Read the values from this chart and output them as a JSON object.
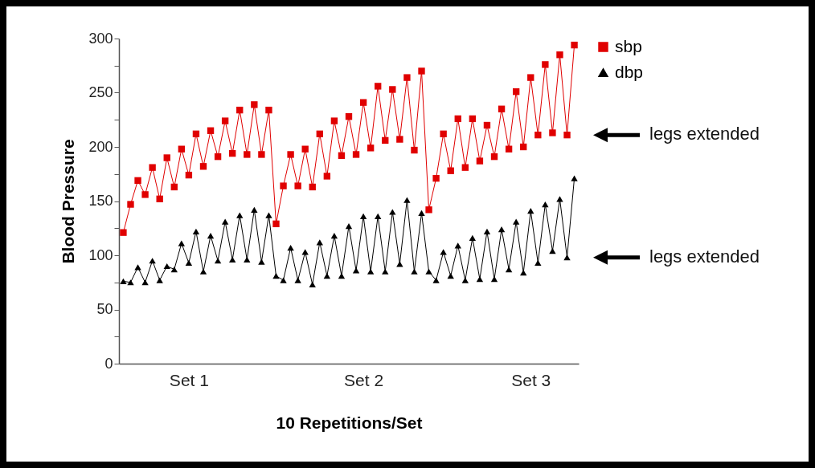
{
  "chart_data": {
    "type": "line",
    "xlabel": "10 Repetitions/Set",
    "ylabel": "Blood Pressure",
    "categories": [
      null,
      null,
      null,
      null,
      null,
      null,
      null,
      null,
      null,
      "Set 1",
      null,
      null,
      null,
      null,
      null,
      null,
      null,
      null,
      null,
      null,
      null,
      null,
      null,
      null,
      null,
      null,
      null,
      null,
      null,
      null,
      null,
      null,
      null,
      "Set 2",
      null,
      null,
      null,
      null,
      null,
      null,
      null,
      null,
      null,
      null,
      null,
      null,
      null,
      null,
      null,
      null,
      null,
      null,
      null,
      null,
      null,
      null,
      "Set 3",
      null,
      null,
      null,
      null,
      null,
      null
    ],
    "series": [
      {
        "name": "sbp",
        "color": "#e00000",
        "marker": "square",
        "values": [
          121,
          147,
          169,
          156,
          181,
          152,
          190,
          163,
          198,
          174,
          212,
          182,
          215,
          191,
          224,
          194,
          234,
          193,
          239,
          193,
          234,
          129,
          164,
          193,
          164,
          198,
          163,
          212,
          173,
          224,
          192,
          228,
          193,
          241,
          199,
          256,
          206,
          253,
          207,
          264,
          197,
          270,
          142,
          171,
          212,
          178,
          226,
          181,
          226,
          187,
          220,
          191,
          235,
          198,
          251,
          200,
          264,
          211,
          276,
          213,
          285,
          211,
          294
        ]
      },
      {
        "name": "dbp",
        "color": "#000000",
        "marker": "triangle",
        "values": [
          76,
          75,
          89,
          75,
          95,
          77,
          90,
          87,
          111,
          93,
          122,
          85,
          118,
          95,
          131,
          96,
          137,
          96,
          142,
          94,
          137,
          81,
          77,
          107,
          77,
          103,
          73,
          112,
          81,
          118,
          81,
          127,
          86,
          136,
          85,
          136,
          85,
          140,
          92,
          151,
          85,
          139,
          85,
          77,
          103,
          81,
          109,
          77,
          116,
          78,
          122,
          78,
          124,
          87,
          131,
          84,
          141,
          93,
          147,
          104,
          152,
          98,
          171
        ]
      }
    ],
    "ylim": [
      0,
      300
    ],
    "yticks": [
      0,
      {
        "value": 25,
        "label": null
      },
      50,
      {
        "value": 75,
        "label": null
      },
      100,
      {
        "value": 125,
        "label": null
      },
      150,
      {
        "value": 175,
        "label": null
      },
      200,
      {
        "value": 225,
        "label": null
      },
      250,
      {
        "value": 275,
        "label": null
      },
      300
    ],
    "annotations": [
      "legs extended",
      "legs extended"
    ],
    "legend": "right",
    "grid": false,
    "line_style": "solid"
  }
}
